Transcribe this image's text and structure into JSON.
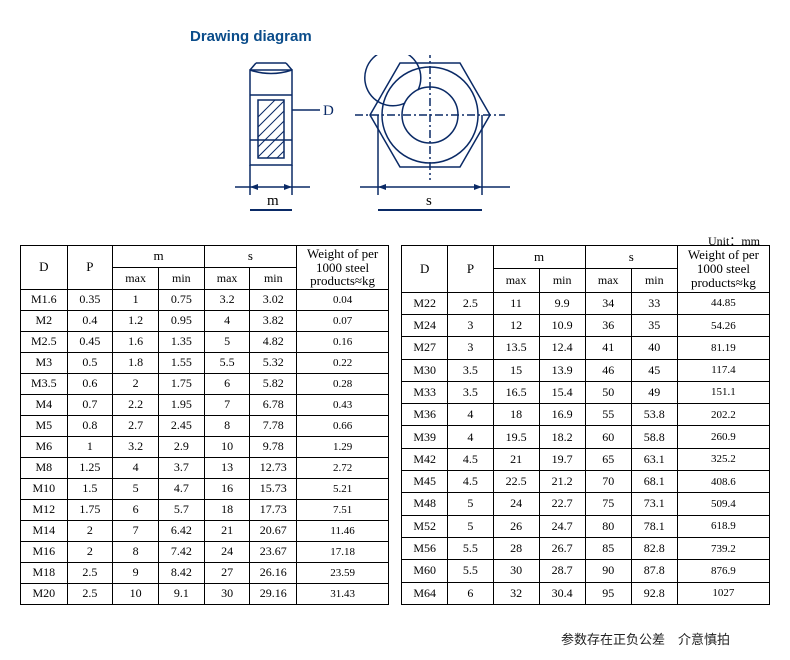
{
  "title": "Drawing diagram",
  "unit_label": "Unit：mm",
  "footer_text": "参数存在正负公差　介意慎拍",
  "diagram": {
    "labels": {
      "m": "m",
      "s": "s",
      "D": "D"
    },
    "stroke_color": "#0a2a66",
    "hatch_color": "#0a2a66"
  },
  "headers": {
    "D": "D",
    "P": "P",
    "m": "m",
    "s": "s",
    "max": "max",
    "min": "min",
    "weight_l1": "Weight of per",
    "weight_l2": "1000 steel",
    "weight_l3": "products≈kg"
  },
  "table_left": [
    [
      "M1.6",
      "0.35",
      "1",
      "0.75",
      "3.2",
      "3.02",
      "0.04"
    ],
    [
      "M2",
      "0.4",
      "1.2",
      "0.95",
      "4",
      "3.82",
      "0.07"
    ],
    [
      "M2.5",
      "0.45",
      "1.6",
      "1.35",
      "5",
      "4.82",
      "0.16"
    ],
    [
      "M3",
      "0.5",
      "1.8",
      "1.55",
      "5.5",
      "5.32",
      "0.22"
    ],
    [
      "M3.5",
      "0.6",
      "2",
      "1.75",
      "6",
      "5.82",
      "0.28"
    ],
    [
      "M4",
      "0.7",
      "2.2",
      "1.95",
      "7",
      "6.78",
      "0.43"
    ],
    [
      "M5",
      "0.8",
      "2.7",
      "2.45",
      "8",
      "7.78",
      "0.66"
    ],
    [
      "M6",
      "1",
      "3.2",
      "2.9",
      "10",
      "9.78",
      "1.29"
    ],
    [
      "M8",
      "1.25",
      "4",
      "3.7",
      "13",
      "12.73",
      "2.72"
    ],
    [
      "M10",
      "1.5",
      "5",
      "4.7",
      "16",
      "15.73",
      "5.21"
    ],
    [
      "M12",
      "1.75",
      "6",
      "5.7",
      "18",
      "17.73",
      "7.51"
    ],
    [
      "M14",
      "2",
      "7",
      "6.42",
      "21",
      "20.67",
      "11.46"
    ],
    [
      "M16",
      "2",
      "8",
      "7.42",
      "24",
      "23.67",
      "17.18"
    ],
    [
      "M18",
      "2.5",
      "9",
      "8.42",
      "27",
      "26.16",
      "23.59"
    ],
    [
      "M20",
      "2.5",
      "10",
      "9.1",
      "30",
      "29.16",
      "31.43"
    ]
  ],
  "table_right": [
    [
      "M22",
      "2.5",
      "11",
      "9.9",
      "34",
      "33",
      "44.85"
    ],
    [
      "M24",
      "3",
      "12",
      "10.9",
      "36",
      "35",
      "54.26"
    ],
    [
      "M27",
      "3",
      "13.5",
      "12.4",
      "41",
      "40",
      "81.19"
    ],
    [
      "M30",
      "3.5",
      "15",
      "13.9",
      "46",
      "45",
      "117.4"
    ],
    [
      "M33",
      "3.5",
      "16.5",
      "15.4",
      "50",
      "49",
      "151.1"
    ],
    [
      "M36",
      "4",
      "18",
      "16.9",
      "55",
      "53.8",
      "202.2"
    ],
    [
      "M39",
      "4",
      "19.5",
      "18.2",
      "60",
      "58.8",
      "260.9"
    ],
    [
      "M42",
      "4.5",
      "21",
      "19.7",
      "65",
      "63.1",
      "325.2"
    ],
    [
      "M45",
      "4.5",
      "22.5",
      "21.2",
      "70",
      "68.1",
      "408.6"
    ],
    [
      "M48",
      "5",
      "24",
      "22.7",
      "75",
      "73.1",
      "509.4"
    ],
    [
      "M52",
      "5",
      "26",
      "24.7",
      "80",
      "78.1",
      "618.9"
    ],
    [
      "M56",
      "5.5",
      "28",
      "26.7",
      "85",
      "82.8",
      "739.2"
    ],
    [
      "M60",
      "5.5",
      "30",
      "28.7",
      "90",
      "87.8",
      "876.9"
    ],
    [
      "M64",
      "6",
      "32",
      "30.4",
      "95",
      "92.8",
      "1027"
    ]
  ]
}
